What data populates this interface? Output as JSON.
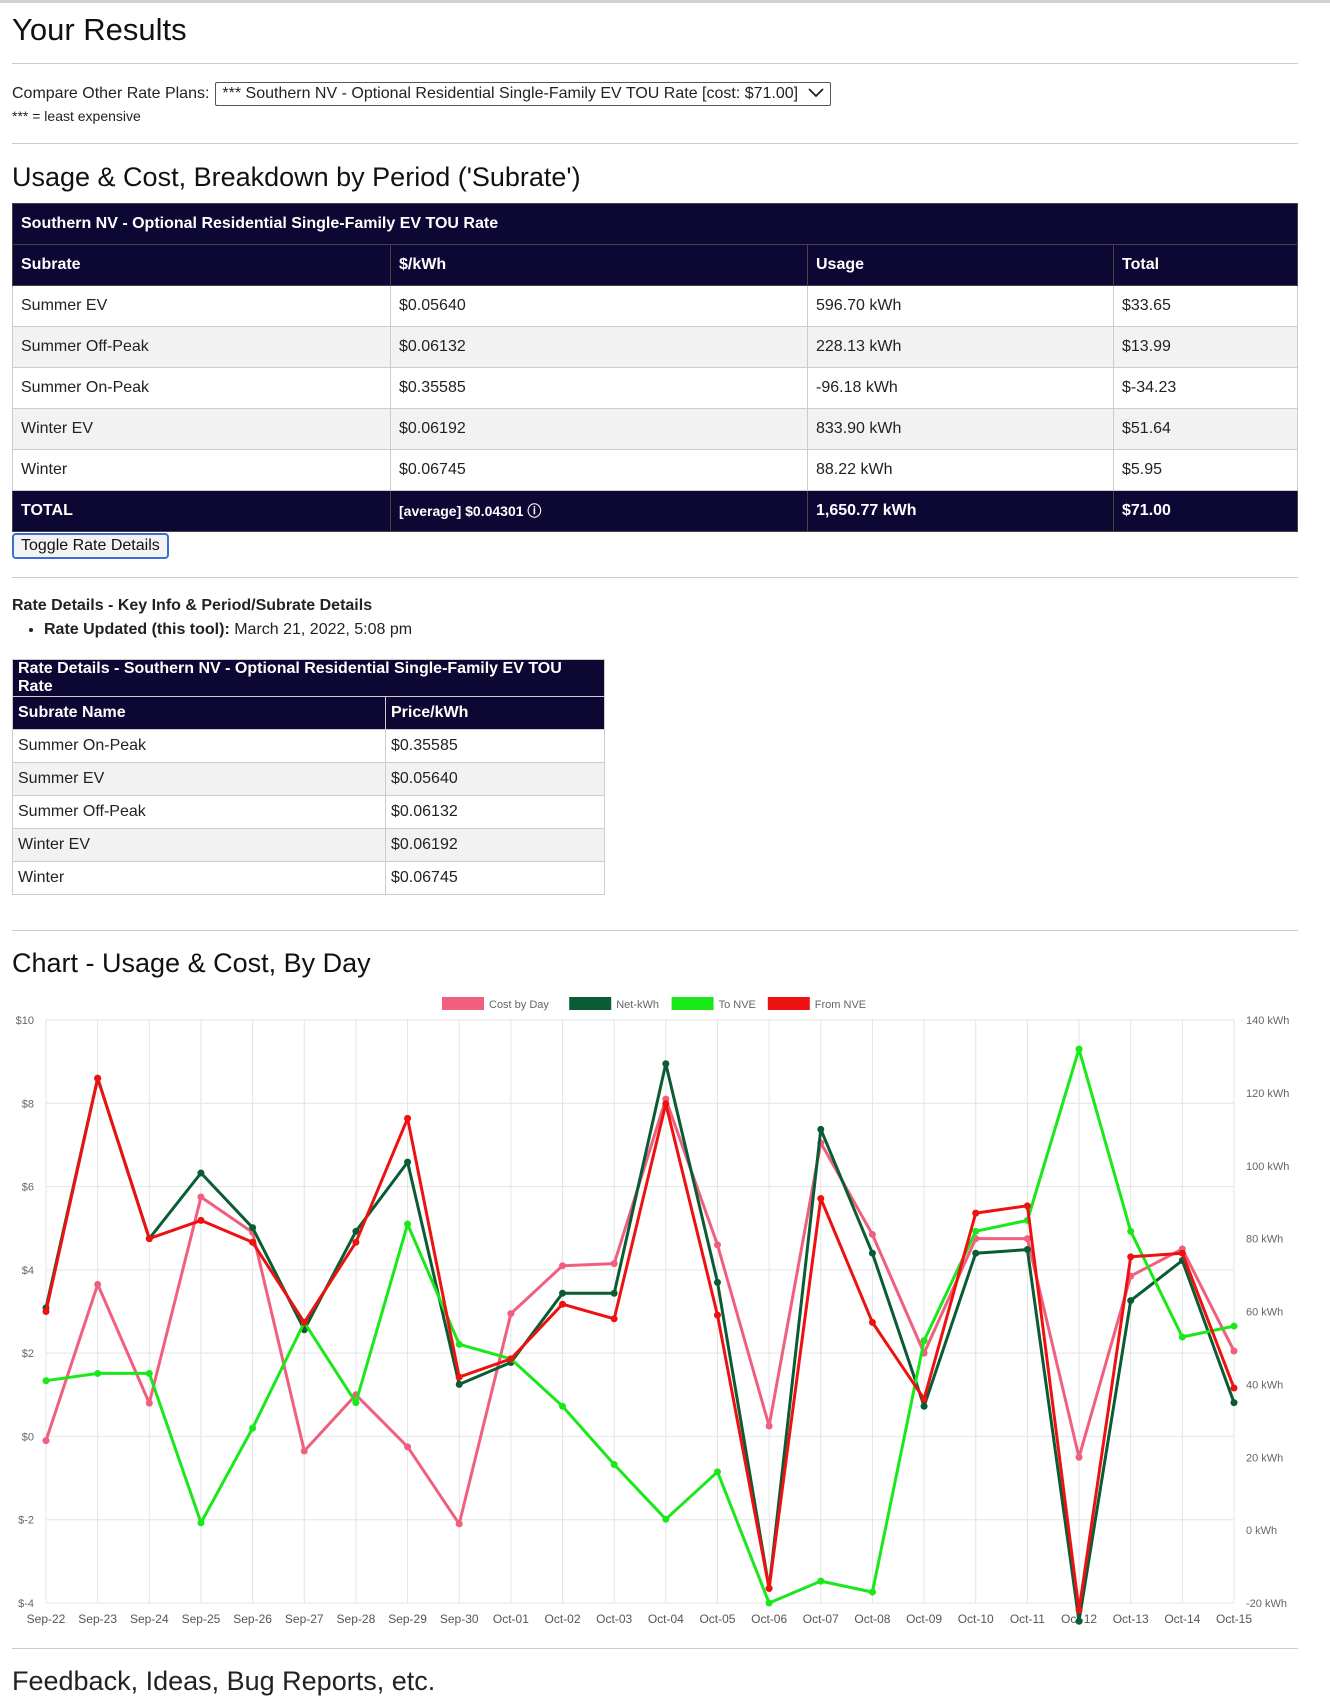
{
  "page": {
    "title": "Your Results",
    "compare_label": "Compare Other Rate Plans:",
    "compare_value": "*** Southern NV - Optional Residential Single-Family EV TOU Rate [cost: $71.00]",
    "least_note": "*** = least expensive",
    "section_usage": "Usage & Cost, Breakdown by Period ('Subrate')",
    "section_chart": "Chart - Usage & Cost, By Day",
    "section_footer": "Feedback, Ideas, Bug Reports, etc."
  },
  "usage_table": {
    "caption": "Southern NV - Optional Residential Single-Family EV TOU Rate",
    "headers": [
      "Subrate",
      "$/kWh",
      "Usage",
      "Total"
    ],
    "rows": [
      [
        "Summer EV",
        "$0.05640",
        "596.70 kWh",
        "$33.65"
      ],
      [
        "Summer Off-Peak",
        "$0.06132",
        "228.13 kWh",
        "$13.99"
      ],
      [
        "Summer On-Peak",
        "$0.35585",
        "-96.18 kWh",
        "$-34.23"
      ],
      [
        "Winter EV",
        "$0.06192",
        "833.90 kWh",
        "$51.64"
      ],
      [
        "Winter",
        "$0.06745",
        "88.22 kWh",
        "$5.95"
      ]
    ],
    "total": [
      "TOTAL",
      "[average] $0.04301 ⓘ",
      "1,650.77 kWh",
      "$71.00"
    ]
  },
  "toggle_label": "Toggle Rate Details",
  "rate_details": {
    "title": "Rate Details - Key Info & Period/Subrate Details",
    "updated_label": "Rate Updated (this tool):",
    "updated_value": " March 21, 2022, 5:08 pm",
    "caption": "Rate Details - Southern NV - Optional Residential Single-Family EV TOU Rate",
    "headers": [
      "Subrate Name",
      "Price/kWh"
    ],
    "rows": [
      [
        "Summer On-Peak",
        "$0.35585"
      ],
      [
        "Summer EV",
        "$0.05640"
      ],
      [
        "Summer Off-Peak",
        "$0.06132"
      ],
      [
        "Winter EV",
        "$0.06192"
      ],
      [
        "Winter",
        "$0.06745"
      ]
    ]
  },
  "chart_data": {
    "type": "line",
    "categories": [
      "Sep-22",
      "Sep-23",
      "Sep-24",
      "Sep-25",
      "Sep-26",
      "Sep-27",
      "Sep-28",
      "Sep-29",
      "Sep-30",
      "Oct-01",
      "Oct-02",
      "Oct-03",
      "Oct-04",
      "Oct-05",
      "Oct-06",
      "Oct-07",
      "Oct-08",
      "Oct-09",
      "Oct-10",
      "Oct-11",
      "Oct-12",
      "Oct-13",
      "Oct-14",
      "Oct-15"
    ],
    "y_left": {
      "ticks": [
        "$10",
        "$8",
        "$6",
        "$4",
        "$2",
        "$0",
        "$-2",
        "$-4"
      ],
      "range": [
        -4,
        10
      ]
    },
    "y_right": {
      "ticks": [
        "140 kWh",
        "120 kWh",
        "100 kWh",
        "80 kWh",
        "60 kWh",
        "40 kWh",
        "20 kWh",
        "0 kWh",
        "-20 kWh"
      ],
      "range": [
        -20,
        140
      ]
    },
    "grid": true,
    "legend_position": "top",
    "series": [
      {
        "name": "Cost by Day",
        "axis": "left",
        "color": "#f0607e",
        "values": [
          -0.1,
          3.65,
          0.8,
          5.75,
          4.9,
          -0.35,
          1.0,
          -0.25,
          -2.1,
          2.95,
          4.1,
          4.15,
          8.1,
          4.6,
          0.25,
          7.05,
          4.85,
          2.0,
          4.75,
          4.75,
          -0.5,
          3.85,
          4.5,
          2.05
        ]
      },
      {
        "name": "Net-kWh",
        "axis": "right",
        "color": "#0a5c34",
        "values": [
          61,
          124,
          80,
          98,
          83,
          55,
          82,
          101,
          40,
          46,
          65,
          65,
          128,
          68,
          -16,
          110,
          76,
          34,
          76,
          77,
          -25,
          63,
          74,
          35
        ]
      },
      {
        "name": "To NVE",
        "axis": "right",
        "color": "#1be81b",
        "values": [
          41,
          43,
          43,
          2,
          28,
          57,
          35,
          84,
          51,
          47,
          34,
          18,
          3,
          16,
          -20,
          -14,
          -17,
          52,
          82,
          85,
          132,
          82,
          53,
          56
        ]
      },
      {
        "name": "From NVE",
        "axis": "right",
        "color": "#ee1111",
        "values": [
          60,
          124,
          80,
          85,
          79,
          57,
          79,
          113,
          42,
          47,
          62,
          58,
          117,
          59,
          -16,
          91,
          57,
          36,
          87,
          89,
          -22,
          75,
          76,
          39
        ]
      }
    ]
  }
}
